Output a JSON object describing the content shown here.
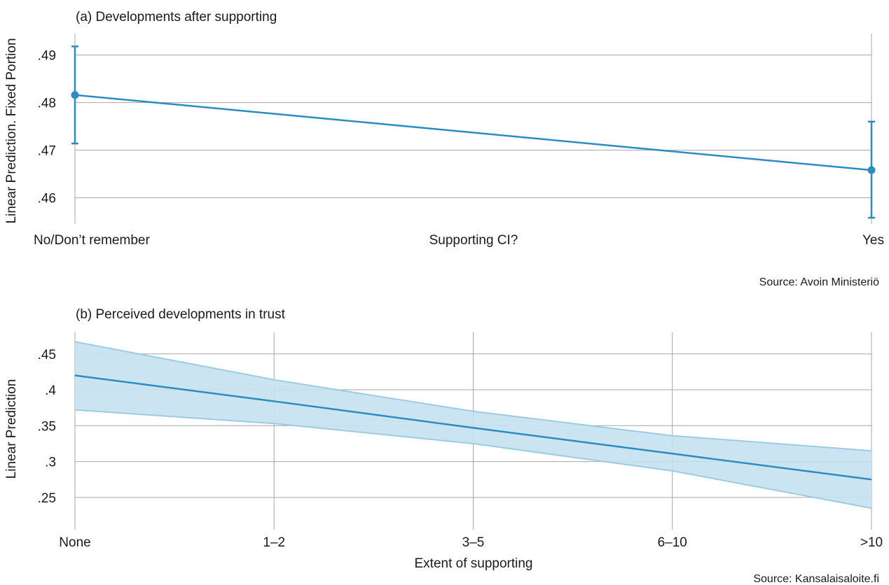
{
  "colors": {
    "line": "#2b8cc4",
    "band_fill": "#c5e1f0",
    "band_edge": "#9ccbe6",
    "grid": "#a6a6a6"
  },
  "chart_data": [
    {
      "type": "line",
      "title": "(a) Developments after supporting",
      "ylabel": "Linear Prediction. Fixed Portion",
      "xlabel": "Supporting CI?",
      "categories": [
        "No/Don’t remember",
        "Yes"
      ],
      "y_ticks": [
        ".46",
        ".47",
        ".48",
        ".49"
      ],
      "y_tick_values": [
        0.46,
        0.47,
        0.48,
        0.49
      ],
      "ylim": [
        0.4545,
        0.4945
      ],
      "grid": true,
      "series": [
        {
          "values": [
            0.4816,
            0.4658
          ],
          "ci_low": [
            0.4714,
            0.4558
          ],
          "ci_high": [
            0.4918,
            0.476
          ]
        }
      ],
      "source": "Source: Avoin Ministeriö"
    },
    {
      "type": "area",
      "title": "(b) Perceived developments in trust",
      "ylabel": "Linear Prediction",
      "xlabel": "Extent of supporting",
      "categories": [
        "None",
        "1–2",
        "3–5",
        "6–10",
        ">10"
      ],
      "y_ticks": [
        ".25",
        ".3",
        ".35",
        ".4",
        ".45"
      ],
      "y_tick_values": [
        0.25,
        0.3,
        0.35,
        0.4,
        0.45
      ],
      "ylim": [
        0.205,
        0.48
      ],
      "grid": true,
      "series": [
        {
          "values": [
            0.42,
            0.384,
            0.347,
            0.311,
            0.275
          ],
          "ci_low": [
            0.372,
            0.353,
            0.325,
            0.287,
            0.235
          ],
          "ci_high": [
            0.467,
            0.414,
            0.37,
            0.336,
            0.315
          ]
        }
      ],
      "source": "Source: Kansalaisaloite.fi"
    }
  ]
}
